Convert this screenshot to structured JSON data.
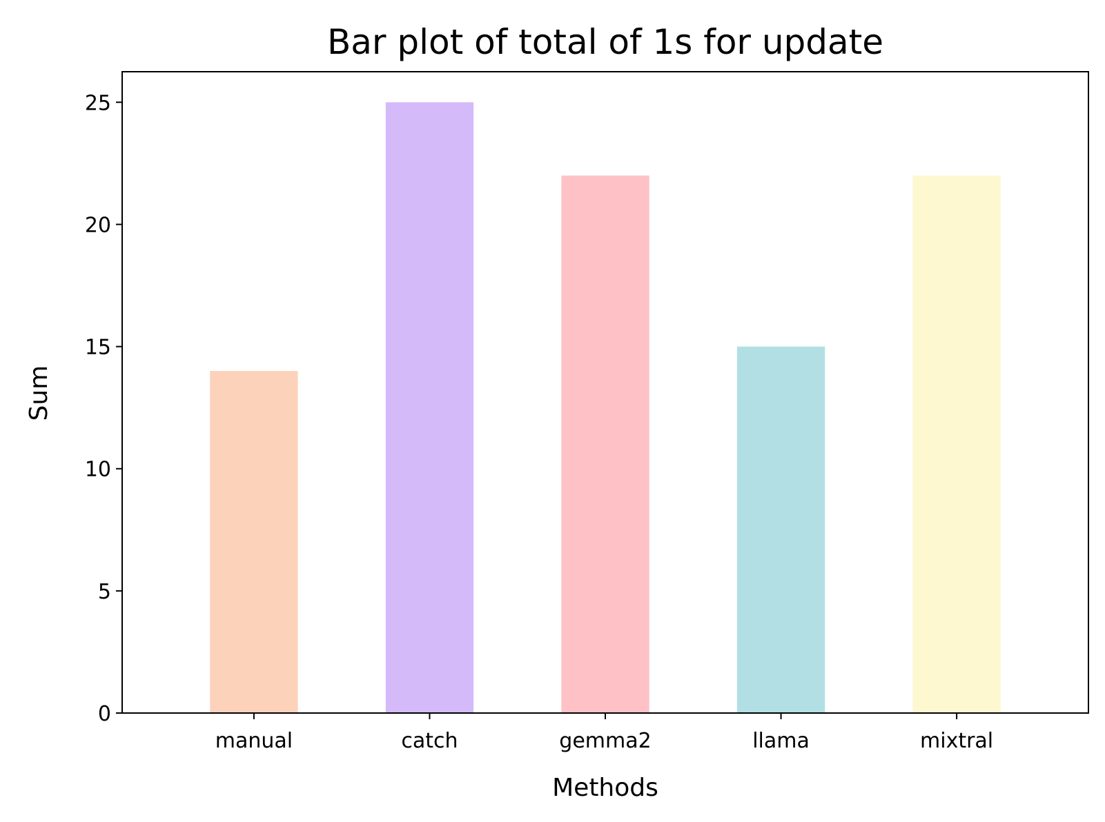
{
  "chart_data": {
    "type": "bar",
    "title": "Bar plot of total of 1s for update",
    "xlabel": "Methods",
    "ylabel": "Sum",
    "categories": [
      "manual",
      "catch",
      "gemma2",
      "llama",
      "mixtral"
    ],
    "values": [
      14,
      25,
      22,
      15,
      22
    ],
    "colors": [
      "#fdd2bb",
      "#d4baf9",
      "#fdc1c6",
      "#b1dfe4",
      "#fdf8d0"
    ],
    "ylim": [
      0,
      26.25
    ],
    "yticks": [
      0,
      5,
      10,
      15,
      20,
      25
    ],
    "grid": false,
    "legend": "none"
  }
}
